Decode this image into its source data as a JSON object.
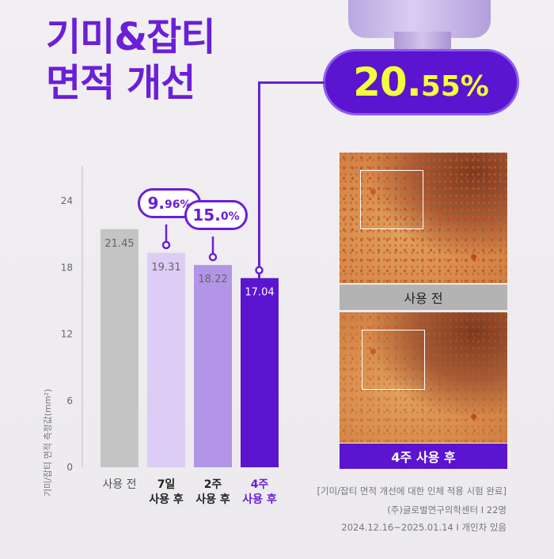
{
  "title": {
    "line1": "기미&잡티",
    "line2": "면적 개선"
  },
  "callout": {
    "value_big": "20.",
    "value_small": "55%"
  },
  "chart_data": {
    "type": "bar",
    "ylabel": "기미/잡티 면적 측정값(mm²)",
    "ylim": [
      0,
      24
    ],
    "yticks": [
      0,
      6,
      12,
      18,
      24
    ],
    "categories": [
      {
        "line1": "사용 전",
        "line2": ""
      },
      {
        "line1": "7일",
        "line2": "사용 후"
      },
      {
        "line1": "2주",
        "line2": "사용 후"
      },
      {
        "line1": "4주",
        "line2": "사용 후"
      }
    ],
    "values": [
      21.45,
      19.31,
      18.22,
      17.04
    ],
    "value_labels": [
      "21.45",
      "19.31",
      "18.22",
      "17.04"
    ],
    "bar_colors": [
      "#c4c4c4",
      "#dccdf5",
      "#b295e6",
      "#5b14cf"
    ],
    "badges": [
      null,
      {
        "big": "9.",
        "small": "96%"
      },
      {
        "big": "15.",
        "small": "0%"
      },
      null
    ]
  },
  "photos": {
    "before_label": "사용 전",
    "after_label": "4주 사용 후"
  },
  "footnote": {
    "line1": "[기미/잡티 면적 개선에 대한 인체 적용 시험 완료]",
    "line2": "(주)글로벌연구의학센터 I 22명",
    "line3": "2024.12.16~2025.01.14 I 개인차 있음"
  },
  "colors": {
    "accent": "#6a1fd8",
    "accent_dark": "#5b14cf",
    "highlight": "#f2ff3a"
  }
}
